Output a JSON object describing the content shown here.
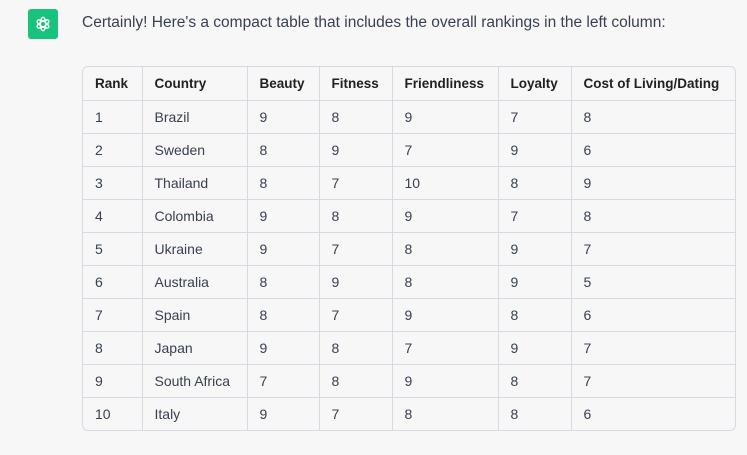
{
  "message": {
    "avatar_icon": "openai-logo-icon",
    "brand_color": "#19c37d",
    "intro": "Certainly! Here's a compact table that includes the overall rankings in the left column:"
  },
  "table": {
    "headers": [
      "Rank",
      "Country",
      "Beauty",
      "Fitness",
      "Friendliness",
      "Loyalty",
      "Cost of Living/Dating"
    ],
    "rows": [
      [
        "1",
        "Brazil",
        "9",
        "8",
        "9",
        "7",
        "8"
      ],
      [
        "2",
        "Sweden",
        "8",
        "9",
        "7",
        "9",
        "6"
      ],
      [
        "3",
        "Thailand",
        "8",
        "7",
        "10",
        "8",
        "9"
      ],
      [
        "4",
        "Colombia",
        "9",
        "8",
        "9",
        "7",
        "8"
      ],
      [
        "5",
        "Ukraine",
        "9",
        "7",
        "8",
        "9",
        "7"
      ],
      [
        "6",
        "Australia",
        "8",
        "9",
        "8",
        "9",
        "5"
      ],
      [
        "7",
        "Spain",
        "8",
        "7",
        "9",
        "8",
        "6"
      ],
      [
        "8",
        "Japan",
        "9",
        "8",
        "7",
        "9",
        "7"
      ],
      [
        "9",
        "South Africa",
        "7",
        "8",
        "9",
        "8",
        "7"
      ],
      [
        "10",
        "Italy",
        "9",
        "7",
        "8",
        "8",
        "6"
      ]
    ]
  }
}
